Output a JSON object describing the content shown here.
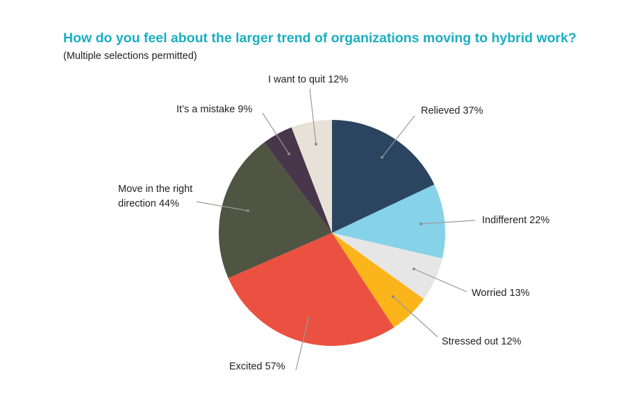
{
  "chart_data": {
    "type": "pie",
    "title": "How do you feel about the larger trend of organizations moving to hybrid work?",
    "subtitle": "(Multiple selections permitted)",
    "colors": {
      "relieved": "#2b4560",
      "indifferent": "#86d2e8",
      "worried": "#e6e6e6",
      "stressed": "#fbb51b",
      "excited": "#eb5140",
      "move": "#4f5542",
      "mistake": "#48364a",
      "quit": "#e7e1d7"
    },
    "slices": [
      {
        "key": "relieved",
        "label": "Relieved 37%",
        "value": 37
      },
      {
        "key": "indifferent",
        "label": "Indifferent 22%",
        "value": 22
      },
      {
        "key": "worried",
        "label": "Worried 13%",
        "value": 13
      },
      {
        "key": "stressed",
        "label": "Stressed out 12%",
        "value": 12
      },
      {
        "key": "excited",
        "label": "Excited 57%",
        "value": 57
      },
      {
        "key": "move",
        "label_lines": [
          "Move in the right",
          "direction 44%"
        ],
        "value": 44
      },
      {
        "key": "mistake",
        "label": "It’s a mistake 9%",
        "value": 9
      },
      {
        "key": "quit",
        "label": "I want to quit 12%",
        "value": 12
      }
    ]
  }
}
